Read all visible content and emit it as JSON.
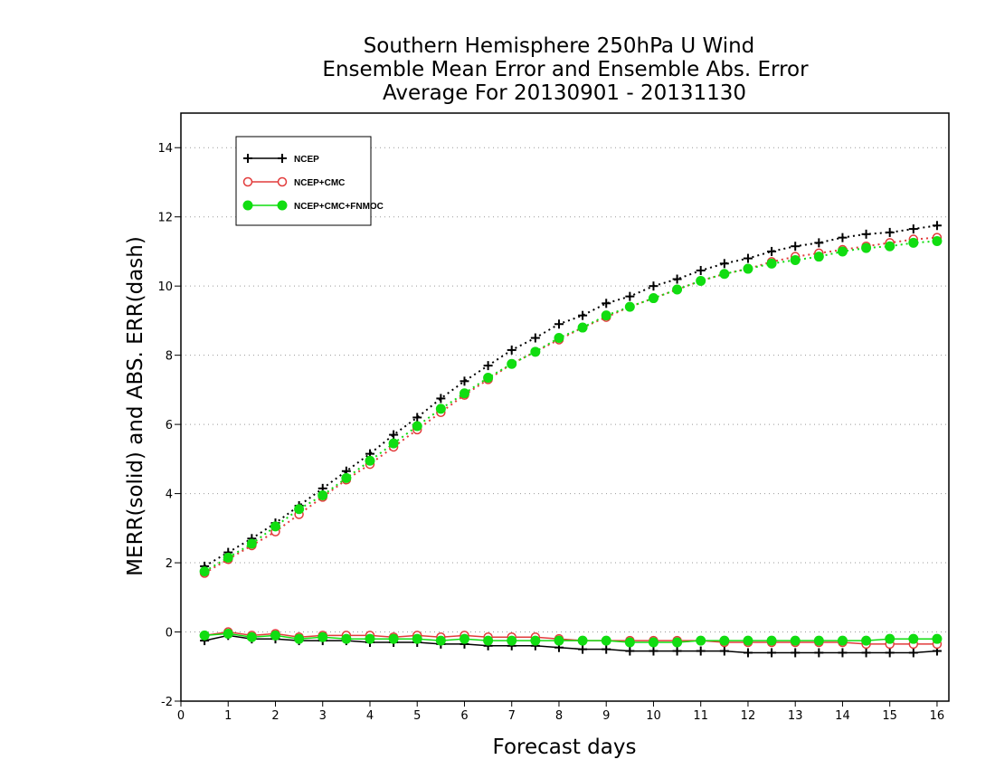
{
  "chart_data": {
    "type": "line",
    "title": [
      "Southern Hemisphere 250hPa U Wind",
      "Ensemble Mean Error and Ensemble Abs. Error",
      "Average For 20130901 - 20131130"
    ],
    "xlabel": "Forecast days",
    "ylabel": "MERR(solid) and ABS. ERR(dash)",
    "xlim": [
      0,
      16.25
    ],
    "ylim": [
      -2,
      15
    ],
    "xticks": [
      "0",
      "1",
      "2",
      "3",
      "4",
      "5",
      "6",
      "7",
      "8",
      "9",
      "10",
      "11",
      "12",
      "13",
      "14",
      "15",
      "16"
    ],
    "yticks": [
      "-2",
      "0",
      "2",
      "4",
      "6",
      "8",
      "10",
      "12",
      "14"
    ],
    "grid": "horizontal dotted",
    "legend_position": "top-left",
    "x": [
      0.5,
      1,
      1.5,
      2,
      2.5,
      3,
      3.5,
      4,
      4.5,
      5,
      5.5,
      6,
      6.5,
      7,
      7.5,
      8,
      8.5,
      9,
      9.5,
      10,
      10.5,
      11,
      11.5,
      12,
      12.5,
      13,
      13.5,
      14,
      14.5,
      15,
      15.5,
      16
    ],
    "series": [
      {
        "name": "NCEP",
        "color": "#000000",
        "marker": "plus",
        "merr": [
          -0.25,
          -0.1,
          -0.2,
          -0.2,
          -0.25,
          -0.25,
          -0.25,
          -0.3,
          -0.3,
          -0.3,
          -0.35,
          -0.35,
          -0.4,
          -0.4,
          -0.4,
          -0.45,
          -0.5,
          -0.5,
          -0.55,
          -0.55,
          -0.55,
          -0.55,
          -0.55,
          -0.6,
          -0.6,
          -0.6,
          -0.6,
          -0.6,
          -0.6,
          -0.6,
          -0.6,
          -0.55
        ],
        "abs_err": [
          1.9,
          2.3,
          2.7,
          3.15,
          3.65,
          4.15,
          4.65,
          5.15,
          5.7,
          6.2,
          6.75,
          7.25,
          7.7,
          8.15,
          8.5,
          8.9,
          9.15,
          9.5,
          9.7,
          10.0,
          10.2,
          10.45,
          10.65,
          10.8,
          11.0,
          11.15,
          11.25,
          11.4,
          11.5,
          11.55,
          11.65,
          11.75
        ]
      },
      {
        "name": "NCEP+CMC",
        "color": "#e23b3b",
        "marker": "open-circle",
        "merr": [
          -0.1,
          0.0,
          -0.1,
          -0.05,
          -0.15,
          -0.1,
          -0.1,
          -0.1,
          -0.15,
          -0.1,
          -0.15,
          -0.1,
          -0.15,
          -0.15,
          -0.15,
          -0.2,
          -0.25,
          -0.25,
          -0.25,
          -0.25,
          -0.25,
          -0.25,
          -0.3,
          -0.3,
          -0.3,
          -0.3,
          -0.3,
          -0.3,
          -0.35,
          -0.35,
          -0.35,
          -0.35
        ],
        "abs_err": [
          1.7,
          2.1,
          2.5,
          2.9,
          3.4,
          3.9,
          4.4,
          4.85,
          5.35,
          5.85,
          6.35,
          6.85,
          7.3,
          7.75,
          8.1,
          8.45,
          8.8,
          9.1,
          9.4,
          9.65,
          9.9,
          10.15,
          10.35,
          10.5,
          10.7,
          10.85,
          10.95,
          11.05,
          11.15,
          11.25,
          11.35,
          11.4
        ]
      },
      {
        "name": "NCEP+CMC+FNMOC",
        "color": "#11dd11",
        "marker": "filled-circle",
        "merr": [
          -0.1,
          -0.05,
          -0.15,
          -0.1,
          -0.2,
          -0.15,
          -0.2,
          -0.2,
          -0.2,
          -0.2,
          -0.25,
          -0.2,
          -0.25,
          -0.25,
          -0.25,
          -0.25,
          -0.25,
          -0.25,
          -0.3,
          -0.3,
          -0.3,
          -0.25,
          -0.25,
          -0.25,
          -0.25,
          -0.25,
          -0.25,
          -0.25,
          -0.25,
          -0.2,
          -0.2,
          -0.2
        ],
        "abs_err": [
          1.75,
          2.15,
          2.55,
          3.05,
          3.55,
          3.95,
          4.45,
          4.95,
          5.45,
          5.95,
          6.45,
          6.9,
          7.35,
          7.75,
          8.1,
          8.5,
          8.8,
          9.15,
          9.4,
          9.65,
          9.9,
          10.15,
          10.35,
          10.5,
          10.65,
          10.75,
          10.85,
          11.0,
          11.1,
          11.15,
          11.25,
          11.3
        ]
      }
    ]
  }
}
